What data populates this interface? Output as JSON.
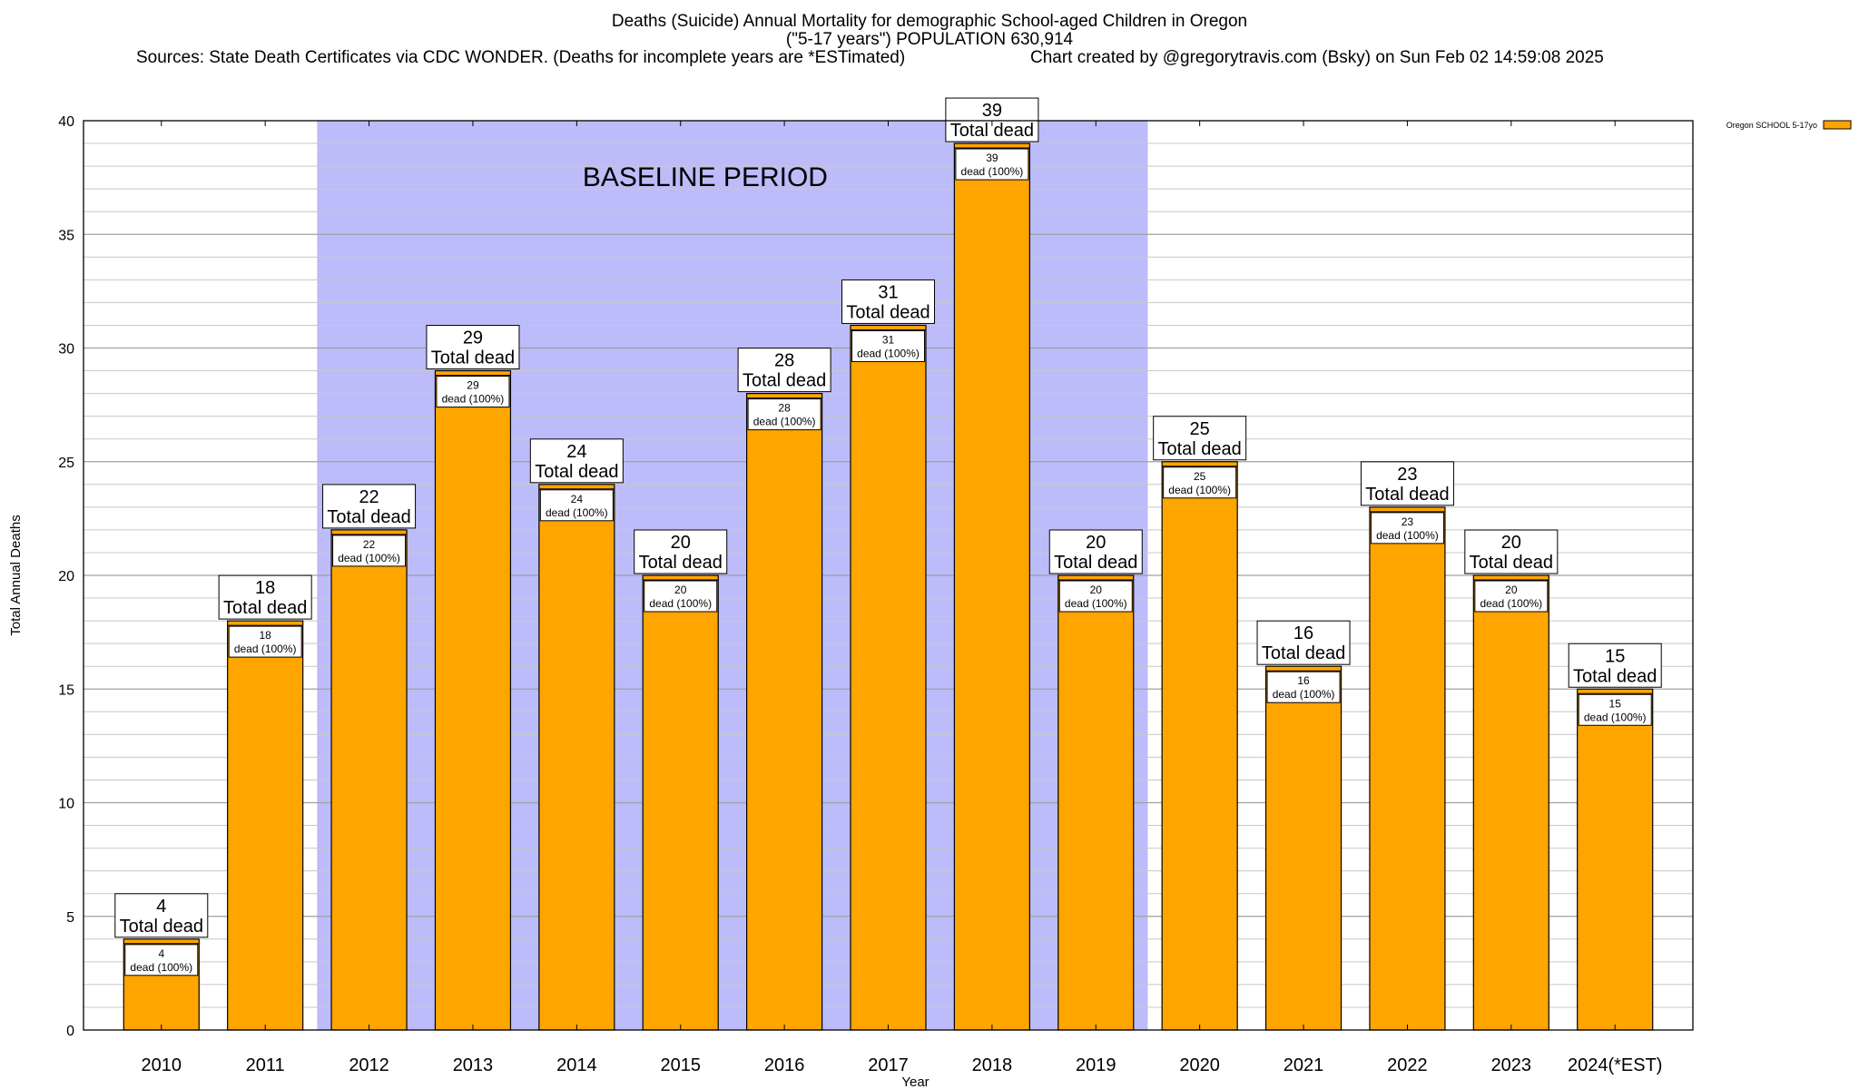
{
  "chart_data": {
    "type": "bar",
    "title": "Deaths (Suicide) Annual Mortality for demographic School-aged Children in Oregon",
    "subtitle": "(\"5-17 years\") POPULATION 630,914",
    "sources": "Sources: State Death Certificates via CDC WONDER. (Deaths for incomplete years are *ESTimated)",
    "credit": "Chart created by @gregorytravis.com (Bsky) on Sun Feb 02 14:59:08 2025",
    "xlabel": "Year",
    "ylabel": "Total Annual Deaths",
    "ylim": [
      0,
      40
    ],
    "ytick_step": 5,
    "yminor_step": 1,
    "categories": [
      "2010",
      "2011",
      "2012",
      "2013",
      "2014",
      "2015",
      "2016",
      "2017",
      "2018",
      "2019",
      "2020",
      "2021",
      "2022",
      "2023",
      "2024(*EST)"
    ],
    "values": [
      4,
      18,
      22,
      29,
      24,
      20,
      28,
      31,
      39,
      20,
      25,
      16,
      23,
      20,
      15
    ],
    "total_label_suffix": "Total dead",
    "inner_label_suffix": "dead (100%)",
    "baseline": {
      "label": "BASELINE PERIOD",
      "start": "2012",
      "end": "2019"
    },
    "legend": {
      "label": "Oregon SCHOOL 5-17yo",
      "position": "top-right"
    },
    "colors": {
      "bar": "#FFA500",
      "baseline": "#BCBCFA",
      "grid": "#A0A0A0"
    }
  }
}
